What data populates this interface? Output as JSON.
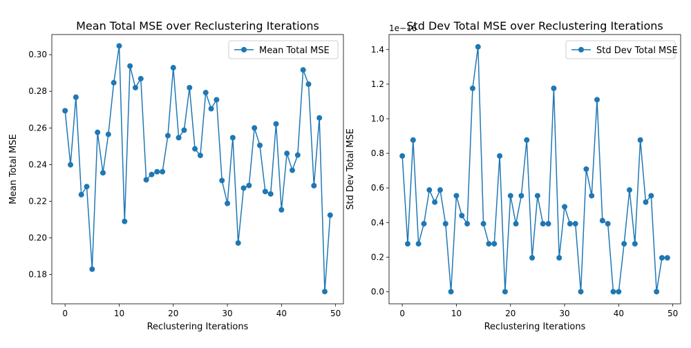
{
  "chart_data": [
    {
      "type": "line",
      "title": "Mean Total MSE over Reclustering Iterations",
      "xlabel": "Reclustering Iterations",
      "ylabel": "Mean Total MSE",
      "xlim": [
        -2.45,
        51.45
      ],
      "ylim": [
        0.164,
        0.311
      ],
      "xticks": [
        0,
        10,
        20,
        30,
        40,
        50
      ],
      "yticks": [
        0.18,
        0.2,
        0.22,
        0.24,
        0.26,
        0.28,
        0.3
      ],
      "xtick_labels": [
        "0",
        "10",
        "20",
        "30",
        "40",
        "50"
      ],
      "ytick_labels": [
        "0.18",
        "0.20",
        "0.22",
        "0.24",
        "0.26",
        "0.28",
        "0.30"
      ],
      "exponent_label": "",
      "legend_position": "upper right",
      "grid": false,
      "color": "#1f77b4",
      "series": [
        {
          "name": "Mean Total MSE",
          "x": [
            0,
            1,
            2,
            3,
            4,
            5,
            6,
            7,
            8,
            9,
            10,
            11,
            12,
            13,
            14,
            15,
            16,
            17,
            18,
            19,
            20,
            21,
            22,
            23,
            24,
            25,
            26,
            27,
            28,
            29,
            30,
            31,
            32,
            33,
            34,
            35,
            36,
            37,
            38,
            39,
            40,
            41,
            42,
            43,
            44,
            45,
            46,
            47,
            48,
            49
          ],
          "values": [
            0.2694,
            0.2399,
            0.2768,
            0.2236,
            0.228,
            0.1829,
            0.2576,
            0.2355,
            0.2565,
            0.2847,
            0.3048,
            0.209,
            0.2938,
            0.282,
            0.2869,
            0.2317,
            0.2346,
            0.2361,
            0.2361,
            0.2558,
            0.2929,
            0.2547,
            0.2588,
            0.282,
            0.2486,
            0.245,
            0.2793,
            0.2705,
            0.2754,
            0.2313,
            0.2188,
            0.2547,
            0.1972,
            0.2272,
            0.2286,
            0.26,
            0.2505,
            0.2253,
            0.224,
            0.2622,
            0.2153,
            0.2461,
            0.2369,
            0.2452,
            0.2917,
            0.2839,
            0.2285,
            0.2655,
            0.1707,
            0.2124
          ]
        }
      ]
    },
    {
      "type": "line",
      "title": "Std Dev Total MSE over Reclustering Iterations",
      "xlabel": "Reclustering Iterations",
      "ylabel": "Std Dev Total MSE",
      "xlim": [
        -2.45,
        51.45
      ],
      "ylim": [
        -0.07,
        1.487
      ],
      "xticks": [
        0,
        10,
        20,
        30,
        40,
        50
      ],
      "yticks": [
        0.0,
        0.2,
        0.4,
        0.6,
        0.8,
        1.0,
        1.2,
        1.4
      ],
      "xtick_labels": [
        "0",
        "10",
        "20",
        "30",
        "40",
        "50"
      ],
      "ytick_labels": [
        "0.0",
        "0.2",
        "0.4",
        "0.6",
        "0.8",
        "1.0",
        "1.2",
        "1.4"
      ],
      "exponent_label": "1e−16",
      "legend_position": "upper right",
      "grid": false,
      "color": "#1f77b4",
      "series": [
        {
          "name": "Std Dev Total MSE",
          "x": [
            0,
            1,
            2,
            3,
            4,
            5,
            6,
            7,
            8,
            9,
            10,
            11,
            12,
            13,
            14,
            15,
            16,
            17,
            18,
            19,
            20,
            21,
            22,
            23,
            24,
            25,
            26,
            27,
            28,
            29,
            30,
            31,
            32,
            33,
            34,
            35,
            36,
            37,
            38,
            39,
            40,
            41,
            42,
            43,
            44,
            45,
            46,
            47,
            48,
            49
          ],
          "values": [
            0.785,
            0.277,
            0.877,
            0.277,
            0.393,
            0.588,
            0.518,
            0.588,
            0.393,
            0.0,
            0.555,
            0.44,
            0.393,
            1.176,
            1.416,
            0.393,
            0.277,
            0.277,
            0.785,
            0.0,
            0.555,
            0.393,
            0.555,
            0.877,
            0.196,
            0.555,
            0.393,
            0.393,
            1.176,
            0.196,
            0.491,
            0.393,
            0.393,
            0.0,
            0.709,
            0.555,
            1.11,
            0.411,
            0.393,
            0.0,
            0.0,
            0.277,
            0.588,
            0.277,
            0.877,
            0.518,
            0.555,
            0.0,
            0.196,
            0.196
          ]
        }
      ]
    }
  ]
}
